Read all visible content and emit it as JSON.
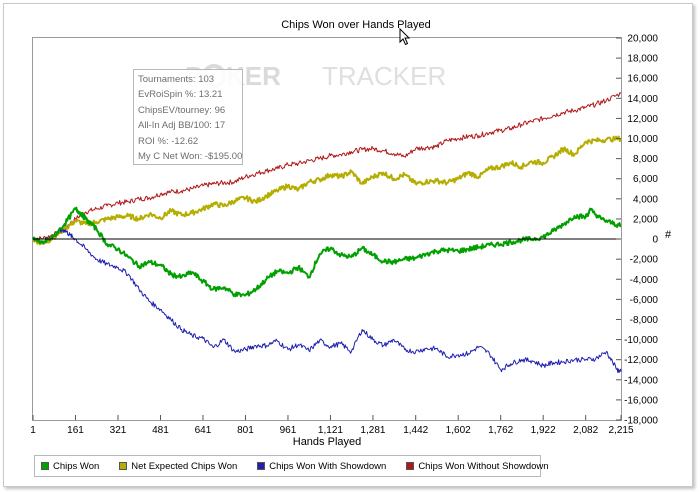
{
  "chart_data": {
    "type": "line",
    "title": "Chips Won over Hands Played",
    "xlabel": "Hands Played",
    "ylabel": "#",
    "xlim": [
      1,
      2215
    ],
    "ylim": [
      -18000,
      20000
    ],
    "x_ticks": [
      "1",
      "161",
      "321",
      "481",
      "641",
      "801",
      "961",
      "1,121",
      "1,281",
      "1,442",
      "1,602",
      "1,762",
      "1,922",
      "2,082",
      "2,215"
    ],
    "y_ticks": [
      "20,000",
      "18,000",
      "16,000",
      "14,000",
      "12,000",
      "10,000",
      "8,000",
      "6,000",
      "4,000",
      "2,000",
      "0",
      "-2,000",
      "-4,000",
      "-6,000",
      "-8,000",
      "-10,000",
      "-12,000",
      "-14,000",
      "-16,000",
      "-18,000"
    ],
    "y_tick_values": [
      20000,
      18000,
      16000,
      14000,
      12000,
      10000,
      8000,
      6000,
      4000,
      2000,
      0,
      -2000,
      -4000,
      -6000,
      -8000,
      -10000,
      -12000,
      -14000,
      -16000,
      -18000
    ],
    "x_tick_values": [
      1,
      161,
      321,
      481,
      641,
      801,
      961,
      1121,
      1281,
      1442,
      1602,
      1762,
      1922,
      2082,
      2215
    ],
    "grid": false,
    "legend_position": "bottom-left",
    "series": [
      {
        "name": "Chips Won",
        "color": "#00a000",
        "x": [
          1,
          40,
          80,
          120,
          161,
          180,
          200,
          240,
          280,
          321,
          360,
          400,
          440,
          481,
          520,
          560,
          600,
          641,
          680,
          720,
          760,
          801,
          840,
          880,
          920,
          961,
          1000,
          1040,
          1080,
          1121,
          1160,
          1200,
          1240,
          1281,
          1320,
          1360,
          1400,
          1442,
          1480,
          1520,
          1560,
          1602,
          1640,
          1680,
          1720,
          1762,
          1800,
          1840,
          1880,
          1922,
          1960,
          2000,
          2040,
          2082,
          2100,
          2140,
          2180,
          2215
        ],
        "y": [
          0,
          -400,
          300,
          1500,
          3000,
          2600,
          2000,
          1000,
          -500,
          -1000,
          -1800,
          -2700,
          -2300,
          -2600,
          -3500,
          -3800,
          -3300,
          -4200,
          -5000,
          -4800,
          -5500,
          -5600,
          -5000,
          -4000,
          -3200,
          -3400,
          -2800,
          -3800,
          -1500,
          -900,
          -1600,
          -1800,
          -900,
          -1600,
          -2200,
          -2300,
          -2000,
          -1900,
          -1500,
          -1200,
          -1100,
          -1200,
          -1000,
          -800,
          -600,
          -500,
          -300,
          -100,
          0,
          200,
          800,
          1500,
          2300,
          2200,
          2900,
          2000,
          1600,
          1300
        ]
      },
      {
        "name": "Net Expected Chips Won",
        "color": "#b5ad00",
        "x": [
          1,
          40,
          80,
          120,
          161,
          200,
          240,
          280,
          321,
          360,
          400,
          440,
          481,
          520,
          560,
          600,
          641,
          680,
          720,
          760,
          801,
          840,
          880,
          920,
          961,
          1000,
          1040,
          1080,
          1121,
          1160,
          1200,
          1240,
          1281,
          1320,
          1360,
          1400,
          1442,
          1480,
          1520,
          1560,
          1602,
          1640,
          1680,
          1720,
          1762,
          1800,
          1840,
          1880,
          1922,
          1960,
          2000,
          2040,
          2082,
          2120,
          2160,
          2215
        ],
        "y": [
          0,
          -500,
          200,
          1000,
          1800,
          1500,
          1700,
          2000,
          2200,
          2300,
          2000,
          2500,
          2100,
          2800,
          2400,
          2600,
          3000,
          3500,
          3300,
          3800,
          4100,
          3700,
          4300,
          4800,
          5300,
          4900,
          5700,
          5900,
          6400,
          6200,
          6700,
          5500,
          6200,
          6600,
          6000,
          6400,
          5500,
          5700,
          5800,
          5600,
          6000,
          6600,
          6200,
          7000,
          7200,
          7600,
          7200,
          7700,
          7600,
          8200,
          9000,
          8400,
          9700,
          9800,
          9900,
          10000
        ]
      },
      {
        "name": "Chips Won With Showdown",
        "color": "#2020b0",
        "x": [
          1,
          40,
          80,
          100,
          120,
          140,
          161,
          200,
          240,
          280,
          321,
          360,
          400,
          440,
          481,
          520,
          560,
          600,
          641,
          680,
          720,
          760,
          801,
          840,
          880,
          920,
          961,
          1000,
          1040,
          1080,
          1121,
          1160,
          1200,
          1240,
          1281,
          1320,
          1360,
          1400,
          1442,
          1480,
          1520,
          1560,
          1602,
          1640,
          1680,
          1720,
          1762,
          1800,
          1840,
          1880,
          1922,
          1960,
          2000,
          2040,
          2082,
          2120,
          2160,
          2200,
          2215
        ],
        "y": [
          0,
          -200,
          300,
          800,
          900,
          400,
          0,
          -1000,
          -2000,
          -2500,
          -2800,
          -3500,
          -5000,
          -6200,
          -7000,
          -8000,
          -9000,
          -9600,
          -9900,
          -10800,
          -10000,
          -11200,
          -11000,
          -10600,
          -10600,
          -10100,
          -11000,
          -10500,
          -11100,
          -10100,
          -10700,
          -10400,
          -11200,
          -9000,
          -10000,
          -10600,
          -10000,
          -11000,
          -11200,
          -10900,
          -10900,
          -11700,
          -11500,
          -11400,
          -10700,
          -11400,
          -13000,
          -12400,
          -12000,
          -12100,
          -12600,
          -12300,
          -12200,
          -12000,
          -12000,
          -11900,
          -11200,
          -13000,
          -13200
        ]
      },
      {
        "name": "Chips Won Without Showdown",
        "color": "#b01818",
        "x": [
          1,
          40,
          80,
          120,
          161,
          200,
          240,
          280,
          321,
          360,
          400,
          440,
          481,
          520,
          560,
          600,
          641,
          680,
          720,
          760,
          801,
          840,
          880,
          920,
          961,
          1000,
          1040,
          1080,
          1121,
          1160,
          1200,
          1240,
          1281,
          1320,
          1360,
          1400,
          1442,
          1480,
          1520,
          1560,
          1602,
          1640,
          1680,
          1720,
          1762,
          1800,
          1840,
          1880,
          1922,
          1960,
          2000,
          2040,
          2082,
          2120,
          2160,
          2215
        ],
        "y": [
          0,
          100,
          400,
          1100,
          2000,
          2700,
          3000,
          3300,
          3600,
          3700,
          4000,
          4100,
          4500,
          4700,
          4800,
          5000,
          5300,
          5500,
          5600,
          5700,
          6200,
          6500,
          6800,
          7000,
          7400,
          7500,
          7800,
          8000,
          8300,
          8400,
          8700,
          8900,
          9000,
          8800,
          8500,
          8200,
          9000,
          9100,
          9200,
          9800,
          10000,
          10200,
          10300,
          10600,
          10800,
          11000,
          11400,
          11700,
          12000,
          12300,
          12600,
          12800,
          13100,
          13400,
          13800,
          14500
        ]
      }
    ]
  },
  "info_box": {
    "lines": [
      "Tournaments: 103",
      "EvRoiSpin %: 13.21",
      "ChipsEV/tourney: 96",
      "All-In Adj BB/100: 17",
      "ROI %: -12.62",
      "My C Net Won: -$195.00"
    ]
  },
  "watermark": {
    "text_light": "P",
    "text_mid": "KER",
    "text_bold": "TRACKER",
    "color": "#d0d0d0"
  }
}
